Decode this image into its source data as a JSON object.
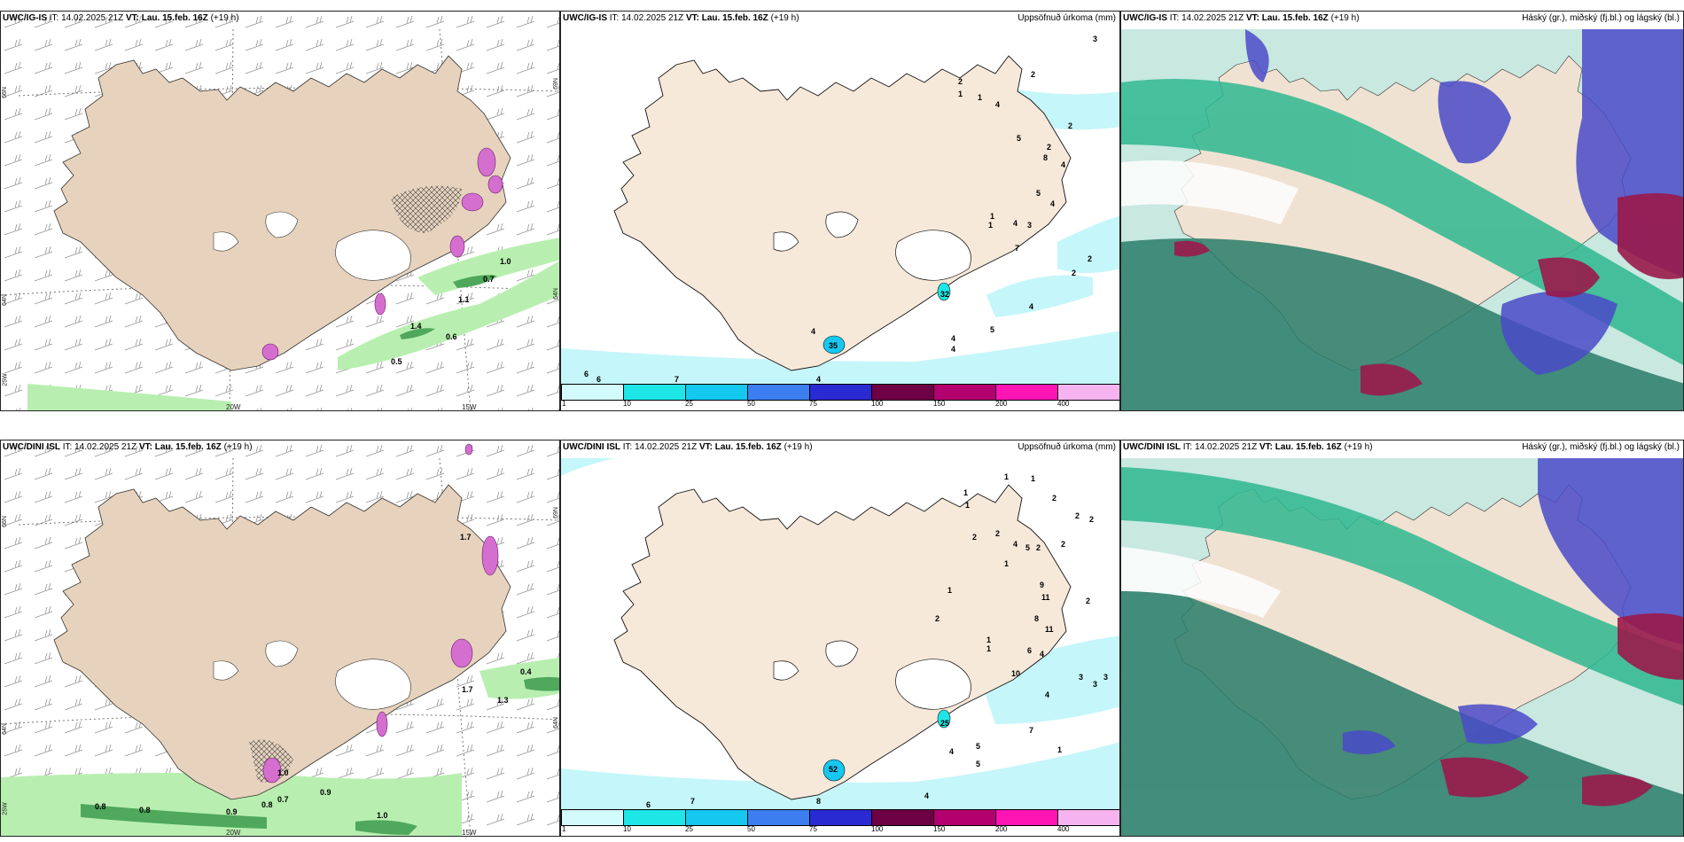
{
  "panels": [
    {
      "id": "p1",
      "model": "UWC/IG-IS",
      "it_label": "IT:",
      "it_value": "14.02.2025 21Z",
      "vt_label": "VT:",
      "vt_value": "Lau. 15.feb. 16Z",
      "offset": "(+19 h)",
      "right_title": "",
      "lon_labels": [
        "20W",
        "15W"
      ],
      "lat_labels": [
        "66N",
        "64N",
        "25W",
        "69N",
        "64N"
      ],
      "values": [
        "1.0",
        "0.7",
        "1.1",
        "1.4",
        "0.6",
        "0.5"
      ]
    },
    {
      "id": "p2",
      "model": "UWC/IG-IS",
      "it_label": "IT:",
      "it_value": "14.02.2025 21Z",
      "vt_label": "VT:",
      "vt_value": "Lau. 15.feb. 16Z",
      "offset": "(+19 h)",
      "right_title": "Uppsöfnuð úrkoma (mm)",
      "values": [
        "3",
        "2",
        "1",
        "1",
        "4",
        "2",
        "2",
        "5",
        "2",
        "8",
        "4",
        "5",
        "4",
        "1",
        "4",
        "3",
        "7",
        "2",
        "2",
        "4",
        "5",
        "4",
        "4",
        "6",
        "6",
        "7",
        "4",
        "35",
        "4",
        "32",
        "1"
      ]
    },
    {
      "id": "p3",
      "model": "UWC/IG-IS",
      "it_label": "IT:",
      "it_value": "14.02.2025 21Z",
      "vt_label": "VT:",
      "vt_value": "Lau. 15.feb. 16Z",
      "offset": "(+19 h)",
      "right_title": "Háský (gr.), miðský (fj.bl.) og lágský (bl.)"
    },
    {
      "id": "p4",
      "model": "UWC/DINI ISL",
      "it_label": "IT:",
      "it_value": "14.02.2025 21Z",
      "vt_label": "VT:",
      "vt_value": "Lau. 15.feb. 16Z",
      "offset": "(+19 h)",
      "right_title": "",
      "lon_labels": [
        "20W",
        "15W"
      ],
      "lat_labels": [
        "66N",
        "64N",
        "25W",
        "69N",
        "64N"
      ],
      "values": [
        "1.7",
        "0.4",
        "1.7",
        "1.3",
        "1.0",
        "0.9",
        "0.7",
        "0.8",
        "0.8",
        "0.9",
        "0.8",
        "1.0"
      ]
    },
    {
      "id": "p5",
      "model": "UWC/DINI ISL",
      "it_label": "IT:",
      "it_value": "14.02.2025 21Z",
      "vt_label": "VT:",
      "vt_value": "Lau. 15.feb. 16Z",
      "offset": "(+19 h)",
      "right_title": "Uppsöfnuð úrkoma (mm)",
      "values": [
        "1",
        "1",
        "2",
        "1",
        "2",
        "2",
        "1",
        "2",
        "2",
        "4",
        "5",
        "2",
        "2",
        "1",
        "1",
        "9",
        "11",
        "2",
        "8",
        "11",
        "1",
        "2",
        "6",
        "4",
        "10",
        "3",
        "3",
        "3",
        "4",
        "1",
        "5",
        "7",
        "4",
        "5",
        "4",
        "6",
        "7",
        "8",
        "52",
        "25",
        "1"
      ]
    },
    {
      "id": "p6",
      "model": "UWC/DINI ISL",
      "it_label": "IT:",
      "it_value": "14.02.2025 21Z",
      "vt_label": "VT:",
      "vt_value": "Lau. 15.feb. 16Z",
      "offset": "(+19 h)",
      "right_title": "Háský (gr.), miðský (fj.bl.) og lágský (bl.)"
    }
  ],
  "precip_scale": {
    "ticks": [
      "1",
      "10",
      "25",
      "50",
      "75",
      "100",
      "150",
      "200",
      "400"
    ],
    "colors": [
      "#d4fbfb",
      "#1ee6e6",
      "#14c8f0",
      "#3c7ef0",
      "#2a2ad2",
      "#6e0046",
      "#b4006e",
      "#ff14b4",
      "#f5b4f0"
    ]
  },
  "colors": {
    "land": "#f7e9da",
    "land_left": "#e7d3bd",
    "sea_precip": "#c5f6fa",
    "cloud_high": "#2fb890",
    "cloud_mid": "#4a4ac8",
    "cloud_low": "#9a1a4a",
    "wind_green": "#b8efb0",
    "wind_green_dark": "#4fa85c",
    "snow_pink": "#d46fd0"
  }
}
